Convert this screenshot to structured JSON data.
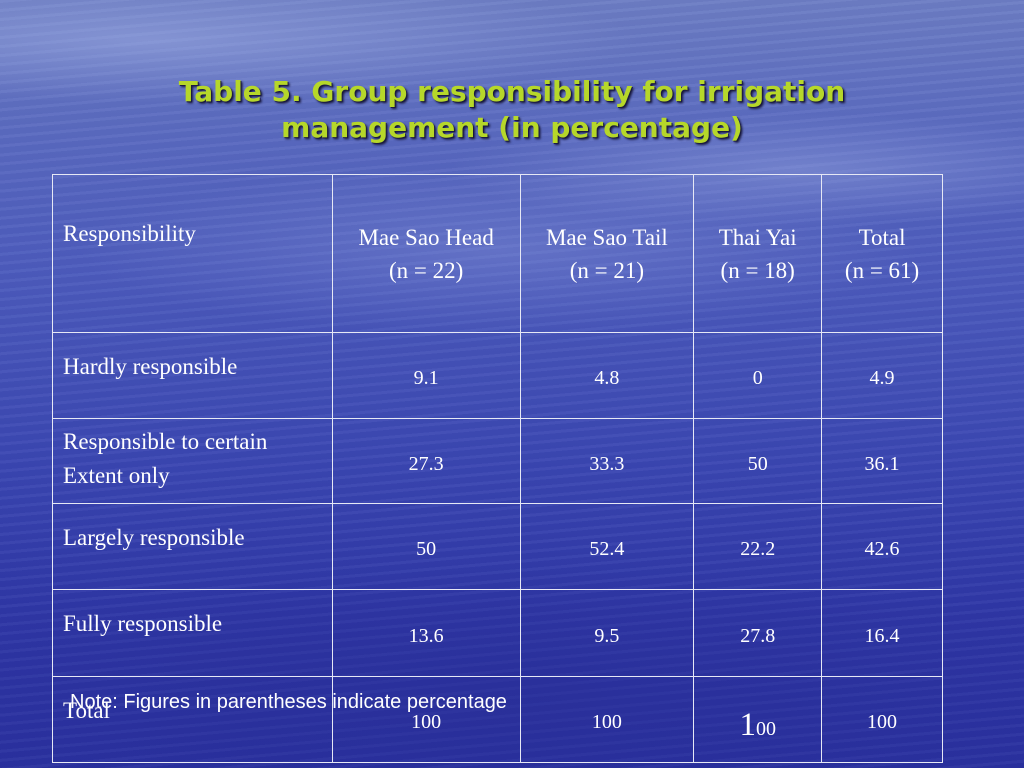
{
  "slide": {
    "title_line1": "Table 5. Group responsibility for irrigation",
    "title_line2": "management (in percentage)",
    "note": "Note: Figures in parentheses indicate percentage",
    "title_color": "#b6d72a"
  },
  "table": {
    "header": {
      "label": "Responsibility",
      "columns": [
        {
          "name": "Mae Sao Head",
          "n": "(n = 22)"
        },
        {
          "name": "Mae Sao Tail",
          "n": "(n = 21)"
        },
        {
          "name": "Thai Yai",
          "n": "(n = 18)"
        },
        {
          "name": "Total",
          "n": "(n = 61)"
        }
      ]
    },
    "rows": [
      {
        "label_line1": "Hardly responsible",
        "label_line2": "",
        "values": [
          "9.1",
          "4.8",
          "0",
          "4.9"
        ]
      },
      {
        "label_line1": "Responsible to certain",
        "label_line2": "Extent only",
        "values": [
          "27.3",
          "33.3",
          "50",
          "36.1"
        ]
      },
      {
        "label_line1": "Largely responsible",
        "label_line2": "",
        "values": [
          "50",
          "52.4",
          "22.2",
          "42.6"
        ]
      },
      {
        "label_line1": "Fully responsible",
        "label_line2": "",
        "values": [
          "13.6",
          "9.5",
          "27.8",
          "16.4"
        ]
      },
      {
        "label_line1": "Total",
        "label_line2": "",
        "values": [
          "100",
          "100",
          "",
          "100"
        ],
        "thai_yai_total_first": "1",
        "thai_yai_total_rest": "00"
      }
    ]
  }
}
